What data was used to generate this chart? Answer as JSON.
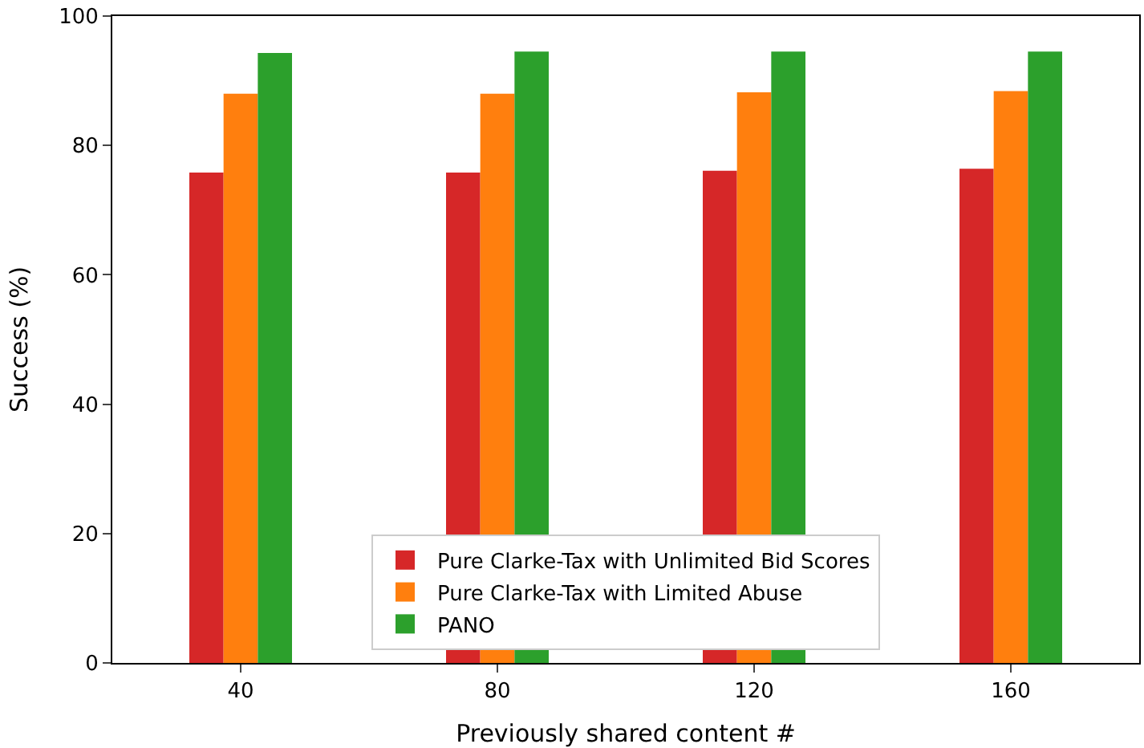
{
  "chart_data": {
    "type": "bar",
    "xlabel": "Previously shared content #",
    "ylabel": "Success (%)",
    "categories": [
      "40",
      "80",
      "120",
      "160"
    ],
    "series": [
      {
        "name": "Pure Clarke-Tax with Unlimited Bid Scores",
        "color": "#d62728",
        "values": [
          75.8,
          75.8,
          76.1,
          76.4
        ]
      },
      {
        "name": "Pure Clarke-Tax with Limited Abuse",
        "color": "#ff7f0e",
        "values": [
          88.0,
          88.0,
          88.2,
          88.4
        ]
      },
      {
        "name": "PANO",
        "color": "#2ca02c",
        "values": [
          94.3,
          94.5,
          94.5,
          94.5
        ]
      }
    ],
    "ylim": [
      0,
      100
    ],
    "yticks": [
      0,
      20,
      40,
      60,
      80,
      100
    ],
    "grid": false,
    "legend": "bottom"
  }
}
